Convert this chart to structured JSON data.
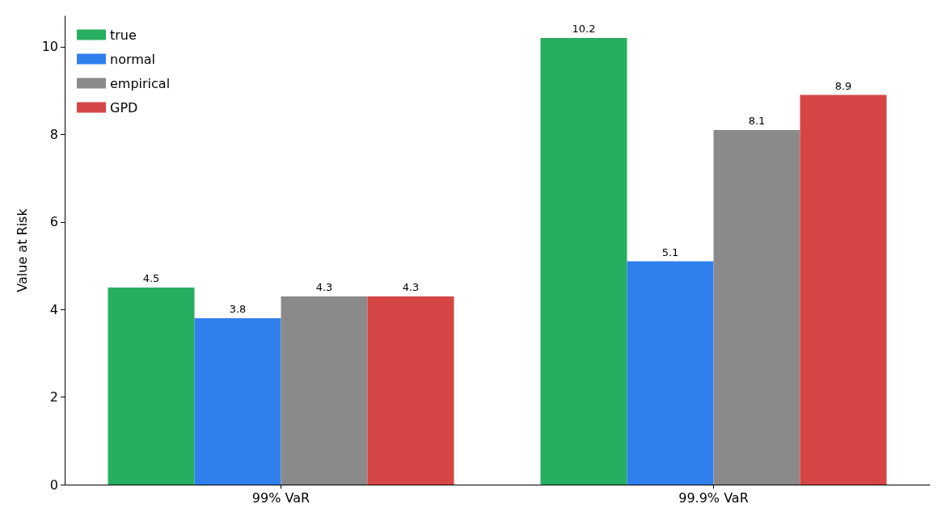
{
  "chart_data": {
    "type": "bar",
    "ylabel": "Value at Risk",
    "categories": [
      "99% VaR",
      "99.9% VaR"
    ],
    "series": [
      {
        "name": "true",
        "color": "#27ae60",
        "values": [
          4.5,
          10.2
        ]
      },
      {
        "name": "normal",
        "color": "#2f80ed",
        "values": [
          3.8,
          5.1
        ]
      },
      {
        "name": "empirical",
        "color": "#8a8a8a",
        "values": [
          4.3,
          8.1
        ]
      },
      {
        "name": "GPD",
        "color": "#d64545",
        "values": [
          4.3,
          8.9
        ]
      }
    ],
    "ylim": [
      0,
      10.7
    ],
    "yticks": [
      0,
      2,
      4,
      6,
      8,
      10
    ],
    "grid": false,
    "legend": "top left",
    "data_labels": true
  }
}
